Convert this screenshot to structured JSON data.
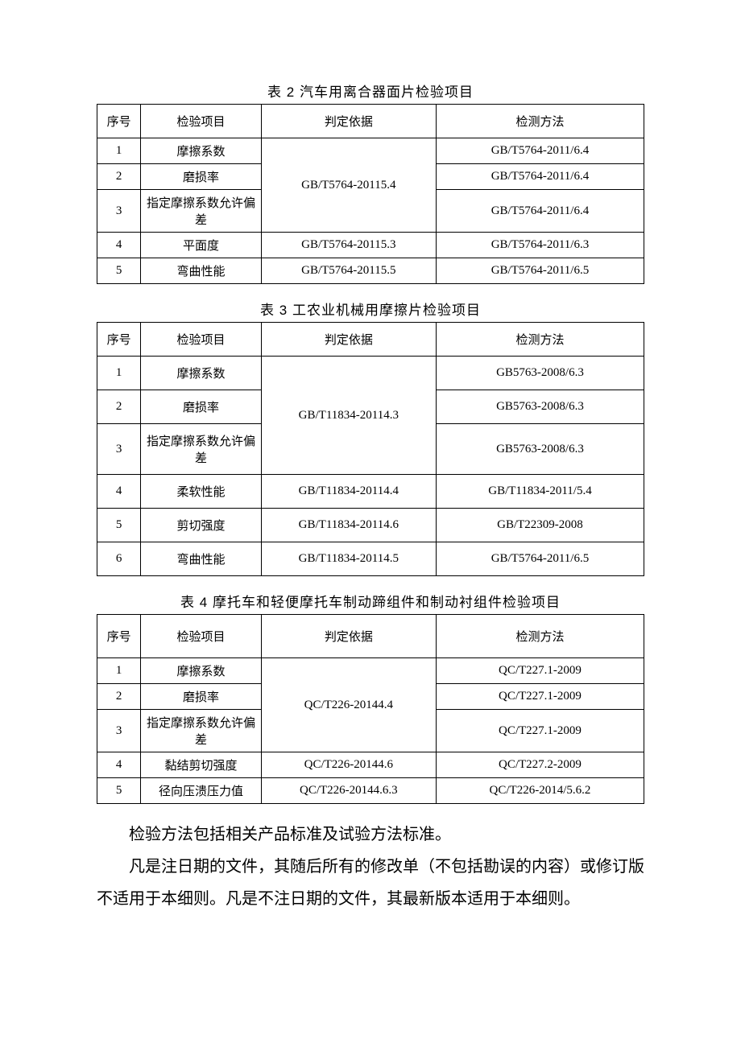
{
  "table2": {
    "caption": "表 2 汽车用离合器面片检验项目",
    "headers": {
      "idx": "序号",
      "proj": "检验项目",
      "crit": "判定依据",
      "method": "检测方法"
    },
    "rows": [
      {
        "idx": "1",
        "proj": "摩擦系数",
        "method": "GB/T5764-2011/6.4"
      },
      {
        "idx": "2",
        "proj": "磨损率",
        "method": "GB/T5764-2011/6.4"
      },
      {
        "idx": "3",
        "proj": "指定摩擦系数允许偏差",
        "method": "GB/T5764-2011/6.4"
      }
    ],
    "merged_crit_1_3": "GB/T5764-20115.4",
    "row4": {
      "idx": "4",
      "proj": "平面度",
      "crit": "GB/T5764-20115.3",
      "method": "GB/T5764-2011/6.3"
    },
    "row5": {
      "idx": "5",
      "proj": "弯曲性能",
      "crit": "GB/T5764-20115.5",
      "method": "GB/T5764-2011/6.5"
    }
  },
  "table3": {
    "caption": "表 3 工农业机械用摩擦片检验项目",
    "headers": {
      "idx": "序号",
      "proj": "检验项目",
      "crit": "判定依据",
      "method": "检测方法"
    },
    "rows": [
      {
        "idx": "1",
        "proj": "摩擦系数",
        "method": "GB5763-2008/6.3"
      },
      {
        "idx": "2",
        "proj": "磨损率",
        "method": "GB5763-2008/6.3"
      },
      {
        "idx": "3",
        "proj": "指定摩擦系数允许偏差",
        "method": "GB5763-2008/6.3"
      }
    ],
    "merged_crit_1_3": "GB/T11834-20114.3",
    "row4": {
      "idx": "4",
      "proj": "柔软性能",
      "crit": "GB/T11834-20114.4",
      "method": "GB/T11834-2011/5.4"
    },
    "row5": {
      "idx": "5",
      "proj": "剪切强度",
      "crit": "GB/T11834-20114.6",
      "method": "GB/T22309-2008"
    },
    "row6": {
      "idx": "6",
      "proj": "弯曲性能",
      "crit": "GB/T11834-20114.5",
      "method": "GB/T5764-2011/6.5"
    }
  },
  "table4": {
    "caption": "表 4 摩托车和轻便摩托车制动蹄组件和制动衬组件检验项目",
    "headers": {
      "idx": "序号",
      "proj": "检验项目",
      "crit": "判定依据",
      "method": "检测方法"
    },
    "rows": [
      {
        "idx": "1",
        "proj": "摩擦系数",
        "method": "QC/T227.1-2009"
      },
      {
        "idx": "2",
        "proj": "磨损率",
        "method": "QC/T227.1-2009"
      },
      {
        "idx": "3",
        "proj": "指定摩擦系数允许偏差",
        "method": "QC/T227.1-2009"
      }
    ],
    "merged_crit_1_3": "QC/T226-20144.4",
    "row4": {
      "idx": "4",
      "proj": "黏结剪切强度",
      "crit": "QC/T226-20144.6",
      "method": "QC/T227.2-2009"
    },
    "row5": {
      "idx": "5",
      "proj": "径向压溃压力值",
      "crit": "QC/T226-20144.6.3",
      "method": "QC/T226-2014/5.6.2"
    }
  },
  "para1": "检验方法包括相关产品标准及试验方法标准。",
  "para2": "凡是注日期的文件，其随后所有的修改单（不包括勘误的内容）或修订版不适用于本细则。凡是不注日期的文件，其最新版本适用于本细则。"
}
